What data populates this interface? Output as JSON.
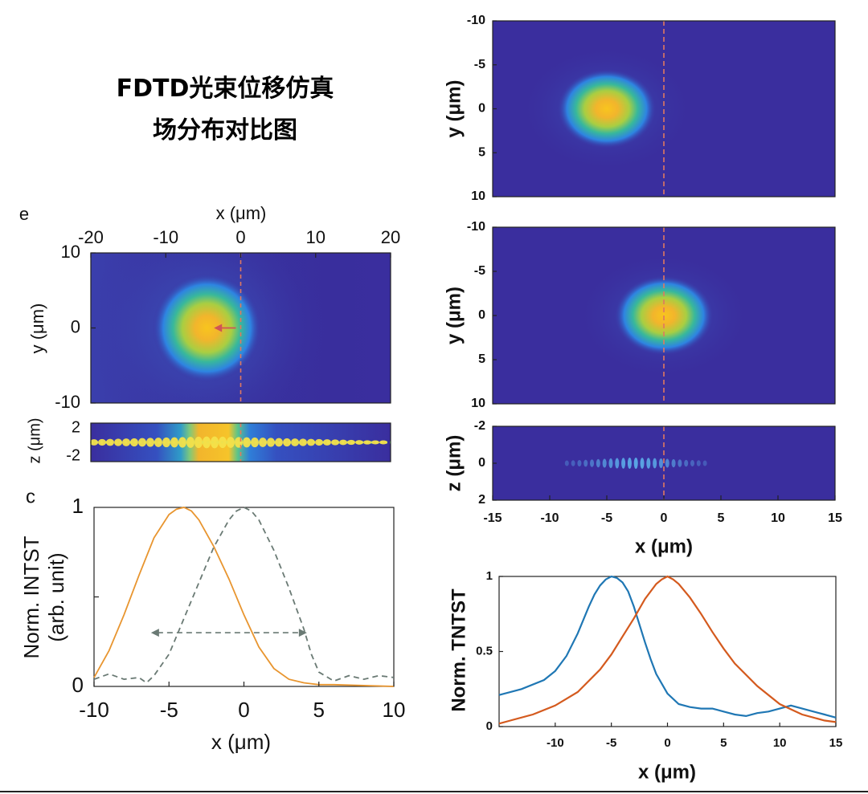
{
  "title_lines": [
    "FDTD光束位移仿真",
    "场分布对比图"
  ],
  "colors": {
    "orange": "#E8952F",
    "gray_dashed": "#6A7A74",
    "blue": "#1F77B4",
    "red_orange": "#D45A1E",
    "arrow": "#D05555",
    "marker_line": "#E07860",
    "map_dark": "#3A2E9E"
  },
  "chart_data": [
    {
      "id": "e",
      "type": "heatmap",
      "panel_label": "e",
      "xlabel": "x (μm)",
      "ylabel": "y (μm)",
      "xlim": [
        -20,
        20
      ],
      "ylim": [
        10,
        -10
      ],
      "xticks": [
        "-20",
        "-10",
        "0",
        "10",
        "20"
      ],
      "yticks": [
        "10",
        "0",
        "-10"
      ],
      "beam_center": [
        -4.5,
        0
      ],
      "marker_x": 0,
      "arrow": {
        "from": [
          0,
          0
        ],
        "to": [
          -4,
          0
        ]
      }
    },
    {
      "id": "e-side",
      "type": "heatmap",
      "ylabel": "z (μm)",
      "xlim": [
        -20,
        20
      ],
      "ylim": [
        2,
        -2
      ],
      "yticks": [
        "2",
        "-2"
      ],
      "marker_x": 0
    },
    {
      "id": "c",
      "type": "line",
      "panel_label": "c",
      "xlabel": "x (μm)",
      "ylabel": [
        "Norm. INTST",
        "(arb. unit)"
      ],
      "xlim": [
        -10,
        10
      ],
      "ylim": [
        0,
        1
      ],
      "xticks": [
        "-10",
        "-5",
        "0",
        "5",
        "10"
      ],
      "yticks": [
        "0",
        "1"
      ],
      "series": [
        {
          "style": "solid",
          "x": [
            -10,
            -9,
            -8,
            -7,
            -6,
            -5,
            -4.5,
            -4,
            -3.5,
            -3,
            -2,
            -1,
            0,
            1,
            2,
            3,
            4,
            5,
            6,
            10
          ],
          "y": [
            0.05,
            0.2,
            0.4,
            0.62,
            0.83,
            0.96,
            0.99,
            1.0,
            0.98,
            0.93,
            0.78,
            0.6,
            0.4,
            0.22,
            0.1,
            0.04,
            0.02,
            0.01,
            0.01,
            0.0
          ]
        },
        {
          "style": "dashed",
          "x": [
            -10,
            -9,
            -8,
            -7,
            -6.5,
            -6,
            -5,
            -4,
            -3,
            -2,
            -1,
            -0.5,
            0,
            0.5,
            1,
            2,
            3,
            4,
            4.5,
            5,
            6,
            7,
            8,
            9,
            10
          ],
          "y": [
            0.04,
            0.07,
            0.04,
            0.05,
            0.02,
            0.06,
            0.18,
            0.38,
            0.58,
            0.78,
            0.93,
            0.98,
            1.0,
            0.98,
            0.93,
            0.76,
            0.55,
            0.32,
            0.18,
            0.08,
            0.03,
            0.06,
            0.04,
            0.06,
            0.05
          ]
        }
      ],
      "fwhm_arrow": [
        -6.2,
        4.2
      ],
      "fwhm_level": 0.3
    },
    {
      "id": "r-top",
      "type": "heatmap",
      "ylabel": "y (μm)",
      "xlim": [
        -15,
        15
      ],
      "ylim": [
        -10,
        10
      ],
      "yticks": [
        "-10",
        "-5",
        "0",
        "5",
        "10"
      ],
      "beam_center": [
        -5,
        0
      ],
      "marker_x": 0
    },
    {
      "id": "r-mid",
      "type": "heatmap",
      "ylabel": "y (μm)",
      "xlim": [
        -15,
        15
      ],
      "ylim": [
        -10,
        10
      ],
      "yticks": [
        "-10",
        "-5",
        "0",
        "5",
        "10"
      ],
      "beam_center": [
        0,
        0
      ],
      "marker_x": 0
    },
    {
      "id": "r-side",
      "type": "heatmap",
      "xlabel": "x (μm)",
      "ylabel": "z (μm)",
      "xlim": [
        -15,
        15
      ],
      "ylim": [
        -2,
        2
      ],
      "xticks": [
        "-15",
        "-10",
        "-5",
        "0",
        "5",
        "10",
        "15"
      ],
      "yticks": [
        "-2",
        "0",
        "2"
      ],
      "marker_x": 0
    },
    {
      "id": "r-line",
      "type": "line",
      "xlabel": "x (μm)",
      "ylabel": "Norm. TNTST",
      "xlim": [
        -15,
        15
      ],
      "ylim": [
        0,
        1
      ],
      "xticks": [
        "-10",
        "-5",
        "0",
        "5",
        "10",
        "15"
      ],
      "yticks": [
        "0",
        "0.5",
        "1"
      ],
      "series": [
        {
          "color": "blue",
          "x": [
            -15,
            -13,
            -11,
            -10,
            -9,
            -8,
            -7,
            -6.5,
            -6,
            -5.5,
            -5,
            -4.5,
            -4,
            -3.5,
            -3,
            -2.5,
            -2,
            -1.5,
            -1,
            0,
            1,
            2,
            3,
            4,
            5,
            6,
            7,
            8,
            9,
            10,
            11,
            12,
            13,
            14,
            15
          ],
          "y": [
            0.21,
            0.25,
            0.31,
            0.37,
            0.47,
            0.62,
            0.8,
            0.88,
            0.94,
            0.98,
            1.0,
            0.99,
            0.96,
            0.9,
            0.8,
            0.68,
            0.56,
            0.45,
            0.35,
            0.22,
            0.15,
            0.13,
            0.12,
            0.12,
            0.1,
            0.08,
            0.07,
            0.09,
            0.1,
            0.12,
            0.14,
            0.12,
            0.1,
            0.08,
            0.06
          ]
        },
        {
          "color": "red_orange",
          "x": [
            -15,
            -14,
            -12,
            -10,
            -8,
            -6,
            -5,
            -4,
            -3,
            -2,
            -1,
            -0.5,
            0,
            0.5,
            1,
            2,
            3,
            4,
            5,
            6,
            8,
            10,
            12,
            14,
            15
          ],
          "y": [
            0.02,
            0.04,
            0.08,
            0.14,
            0.23,
            0.38,
            0.48,
            0.6,
            0.72,
            0.85,
            0.95,
            0.98,
            1.0,
            0.98,
            0.95,
            0.86,
            0.75,
            0.63,
            0.52,
            0.42,
            0.27,
            0.15,
            0.08,
            0.04,
            0.03
          ]
        }
      ]
    }
  ]
}
